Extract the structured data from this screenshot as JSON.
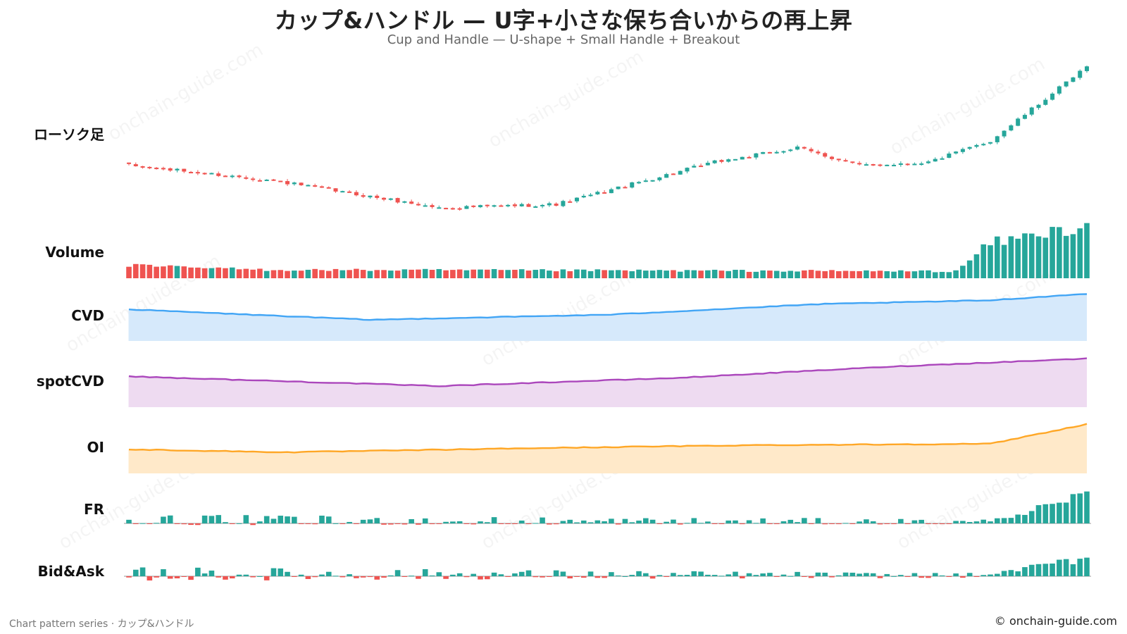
{
  "header": {
    "title": "カップ&ハンドル — U字+小さな保ち合いからの再上昇",
    "subtitle": "Cup and Handle — U-shape + Small Handle + Breakout"
  },
  "footer": {
    "left": "Chart pattern series · カップ&ハンドル",
    "right": "© onchain-guide.com"
  },
  "watermark": "onchain-guide.com",
  "colors": {
    "up": "#26a69a",
    "down": "#ef5350",
    "cvd": "#42a5f5",
    "cvd_fill": "#d6e9fb",
    "spot_cvd": "#ab47bc",
    "spot_cvd_fill": "#eedbf1",
    "oi": "#ffa726",
    "oi_fill": "#ffe9c9",
    "axis": "#999999"
  },
  "chart_data": {
    "type": "multi-panel",
    "panels": [
      {
        "key": "candles",
        "label": "ローソク足",
        "type": "candlestick",
        "series": [
          {
            "x": 0,
            "close": 100
          },
          {
            "x": 20,
            "close": 96
          },
          {
            "x": 45,
            "close": 88
          },
          {
            "x": 62,
            "close": 89
          },
          {
            "x": 85,
            "close": 101
          },
          {
            "x": 97,
            "close": 105
          },
          {
            "x": 106,
            "close": 100
          },
          {
            "x": 116,
            "close": 101
          },
          {
            "x": 125,
            "close": 107
          },
          {
            "x": 139,
            "close": 128
          }
        ]
      },
      {
        "key": "volume",
        "label": "Volume",
        "type": "bar",
        "series": [
          {
            "x": 0,
            "value": 18
          },
          {
            "x": 20,
            "value": 12
          },
          {
            "x": 120,
            "value": 10
          },
          {
            "x": 125,
            "value": 50
          },
          {
            "x": 139,
            "value": 75
          }
        ]
      },
      {
        "key": "cvd",
        "label": "CVD",
        "type": "area",
        "series": [
          {
            "x": 0,
            "value": 0.4
          },
          {
            "x": 35,
            "value": 0
          },
          {
            "x": 70,
            "value": 0.2
          },
          {
            "x": 100,
            "value": 0.6
          },
          {
            "x": 125,
            "value": 0.75
          },
          {
            "x": 139,
            "value": 1
          }
        ]
      },
      {
        "key": "spotcvd",
        "label": "spotCVD",
        "type": "area",
        "series": [
          {
            "x": 0,
            "value": 0.35
          },
          {
            "x": 45,
            "value": 0
          },
          {
            "x": 80,
            "value": 0.3
          },
          {
            "x": 110,
            "value": 0.7
          },
          {
            "x": 139,
            "value": 1
          }
        ]
      },
      {
        "key": "oi",
        "label": "OI",
        "type": "area",
        "series": [
          {
            "x": 0,
            "value": 0.1
          },
          {
            "x": 23,
            "value": 0
          },
          {
            "x": 60,
            "value": 0.15
          },
          {
            "x": 90,
            "value": 0.25
          },
          {
            "x": 125,
            "value": 0.3
          },
          {
            "x": 139,
            "value": 1
          }
        ]
      },
      {
        "key": "fr",
        "label": "FR",
        "type": "bar",
        "series": [
          {
            "x": 0,
            "value": 0.2
          },
          {
            "x": 125,
            "value": 0.1
          },
          {
            "x": 139,
            "value": 1
          }
        ]
      },
      {
        "key": "bidask",
        "label": "Bid&Ask",
        "type": "bar",
        "series": [
          {
            "x": 0,
            "value": 0.3
          },
          {
            "x": 125,
            "value": 0.1
          },
          {
            "x": 139,
            "value": 1
          }
        ]
      }
    ]
  }
}
